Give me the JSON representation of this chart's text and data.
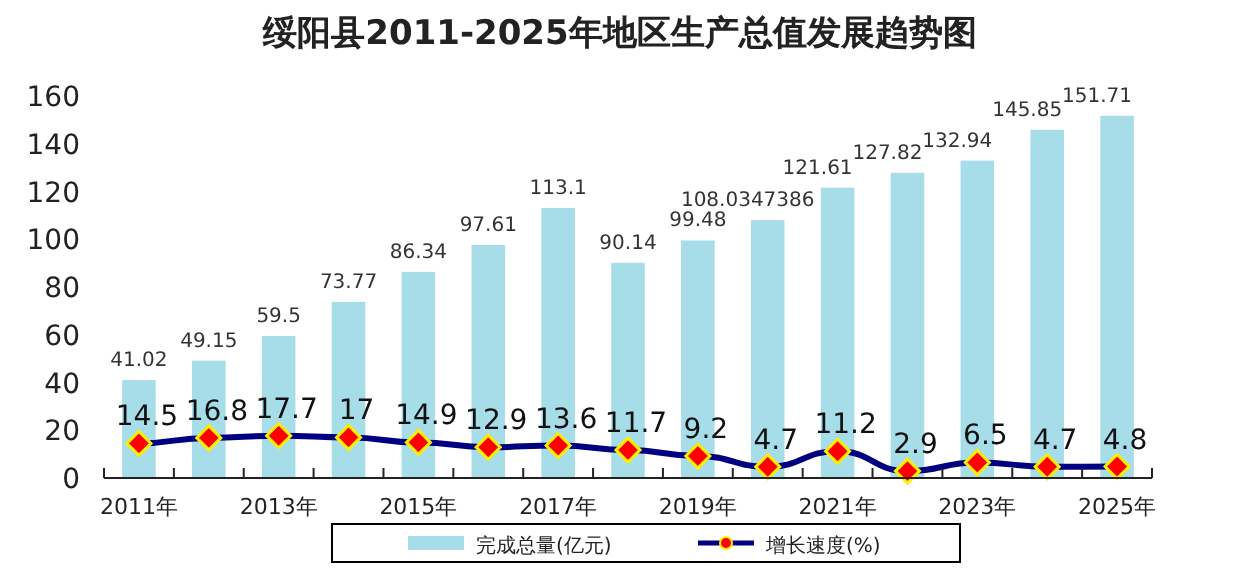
{
  "chart_data": {
    "type": "bar",
    "title": "绥阳县2011-2025年地区生产总值发展趋势图",
    "categories": [
      "2011年",
      null,
      "2013年",
      null,
      "2015年",
      null,
      "2017年",
      null,
      "2019年",
      null,
      "2021年",
      null,
      "2023年",
      null,
      "2025年"
    ],
    "series": [
      {
        "name": "完成总量(亿元)",
        "color": "#a6dde9",
        "values": [
          41.02,
          49.15,
          59.5,
          73.77,
          86.34,
          97.61,
          113.1,
          90.14,
          99.48,
          108.0347386,
          121.61,
          127.82,
          132.94,
          145.85,
          151.71
        ]
      },
      {
        "name": "增长速度(%)",
        "type": "line",
        "color": "#000080",
        "values": [
          14.5,
          16.8,
          17.7,
          17,
          14.9,
          12.9,
          13.6,
          11.7,
          9.2,
          4.7,
          11.2,
          2.9,
          6.5,
          4.7,
          4.8
        ]
      }
    ],
    "ylim": [
      0,
      160
    ],
    "yticks": [
      0,
      20,
      40,
      60,
      80,
      100,
      120,
      140,
      160
    ],
    "data_labels": true,
    "marker": "diamond",
    "legend": "bottom",
    "grid": false
  }
}
